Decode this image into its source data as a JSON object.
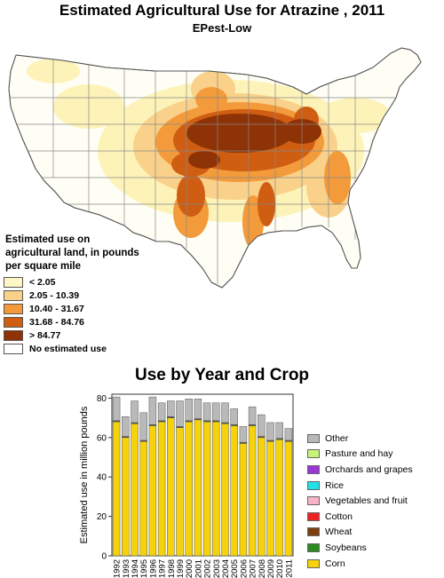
{
  "map": {
    "title": "Estimated Agricultural Use for Atrazine , 2011",
    "subtitle": "EPest-Low",
    "legend_title": "Estimated use on agricultural land, in pounds per square mile",
    "legend_items": [
      {
        "label": "< 2.05",
        "color": "#fdf7c5"
      },
      {
        "label": "2.05 - 10.39",
        "color": "#f9d18a"
      },
      {
        "label": "10.40 - 31.67",
        "color": "#f39a3b"
      },
      {
        "label": "31.68 - 84.76",
        "color": "#cf5d12"
      },
      {
        "label": "> 84.77",
        "color": "#8e3306"
      },
      {
        "label": "No estimated use",
        "color": "#ffffff"
      }
    ]
  },
  "chart_data": {
    "type": "bar",
    "title": "Use by Year and Crop",
    "ylabel": "Estimated use in million pounds",
    "xlabel": "",
    "ylim": [
      0,
      82
    ],
    "yticks": [
      0,
      20,
      40,
      60,
      80
    ],
    "categories": [
      "1992",
      "1993",
      "1994",
      "1995",
      "1996",
      "1997",
      "1998",
      "1999",
      "2000",
      "2001",
      "2002",
      "2003",
      "2004",
      "2005",
      "2006",
      "2007",
      "2008",
      "2009",
      "2010",
      "2011"
    ],
    "series": [
      {
        "name": "Corn",
        "color": "#f5d20a",
        "values": [
          68,
          60,
          67,
          58,
          66,
          68,
          70,
          65,
          68,
          69,
          68,
          68,
          67,
          66,
          57,
          66,
          60,
          58,
          59,
          58
        ]
      },
      {
        "name": "Soybeans",
        "color": "#2e8b22",
        "values": [
          0.3,
          0.3,
          0.3,
          0.3,
          0.3,
          0.3,
          0.3,
          0.3,
          0.3,
          0.3,
          0.3,
          0.3,
          0.3,
          0.3,
          0.3,
          0.3,
          0.3,
          0.3,
          0.3,
          0.3
        ]
      },
      {
        "name": "Wheat",
        "color": "#7b3f12",
        "values": [
          0.3,
          0.3,
          0.3,
          0.3,
          0.3,
          0.3,
          0.3,
          0.3,
          0.3,
          0.3,
          0.3,
          0.3,
          0.3,
          0.3,
          0.3,
          0.3,
          0.3,
          0.3,
          0.3,
          0.3
        ]
      },
      {
        "name": "Cotton",
        "color": "#ee2222",
        "values": [
          0,
          0,
          0,
          0,
          0,
          0,
          0,
          0,
          0,
          0,
          0,
          0,
          0,
          0,
          0,
          0,
          0,
          0,
          0,
          0
        ]
      },
      {
        "name": "Vegetables and fruit",
        "color": "#f7b3c5",
        "values": [
          0,
          0,
          0,
          0,
          0,
          0,
          0,
          0,
          0,
          0,
          0,
          0,
          0,
          0,
          0,
          0,
          0,
          0,
          0,
          0
        ]
      },
      {
        "name": "Rice",
        "color": "#22e0e6",
        "values": [
          0,
          0,
          0,
          0,
          0,
          0,
          0,
          0,
          0,
          0,
          0,
          0,
          0,
          0,
          0,
          0,
          0,
          0,
          0,
          0
        ]
      },
      {
        "name": "Orchards and grapes",
        "color": "#9a35d6",
        "values": [
          0,
          0,
          0,
          0,
          0,
          0,
          0,
          0,
          0,
          0,
          0,
          0,
          0,
          0,
          0,
          0,
          0,
          0,
          0,
          0
        ]
      },
      {
        "name": "Pasture and hay",
        "color": "#c9f27a",
        "values": [
          0,
          0,
          0,
          0,
          0,
          0,
          0,
          0,
          0,
          0,
          0,
          0,
          0,
          0,
          0,
          0,
          0,
          0,
          0,
          0
        ]
      },
      {
        "name": "Other",
        "color": "#b9b9b9",
        "values": [
          12,
          10,
          11,
          14,
          14,
          9,
          8,
          13,
          11,
          10,
          9,
          9,
          10,
          8,
          8,
          9,
          11,
          9,
          8,
          6
        ]
      }
    ],
    "legend_order": [
      "Other",
      "Pasture and hay",
      "Orchards and grapes",
      "Rice",
      "Vegetables and fruit",
      "Cotton",
      "Wheat",
      "Soybeans",
      "Corn"
    ],
    "grid": false,
    "legend_position": "right"
  }
}
